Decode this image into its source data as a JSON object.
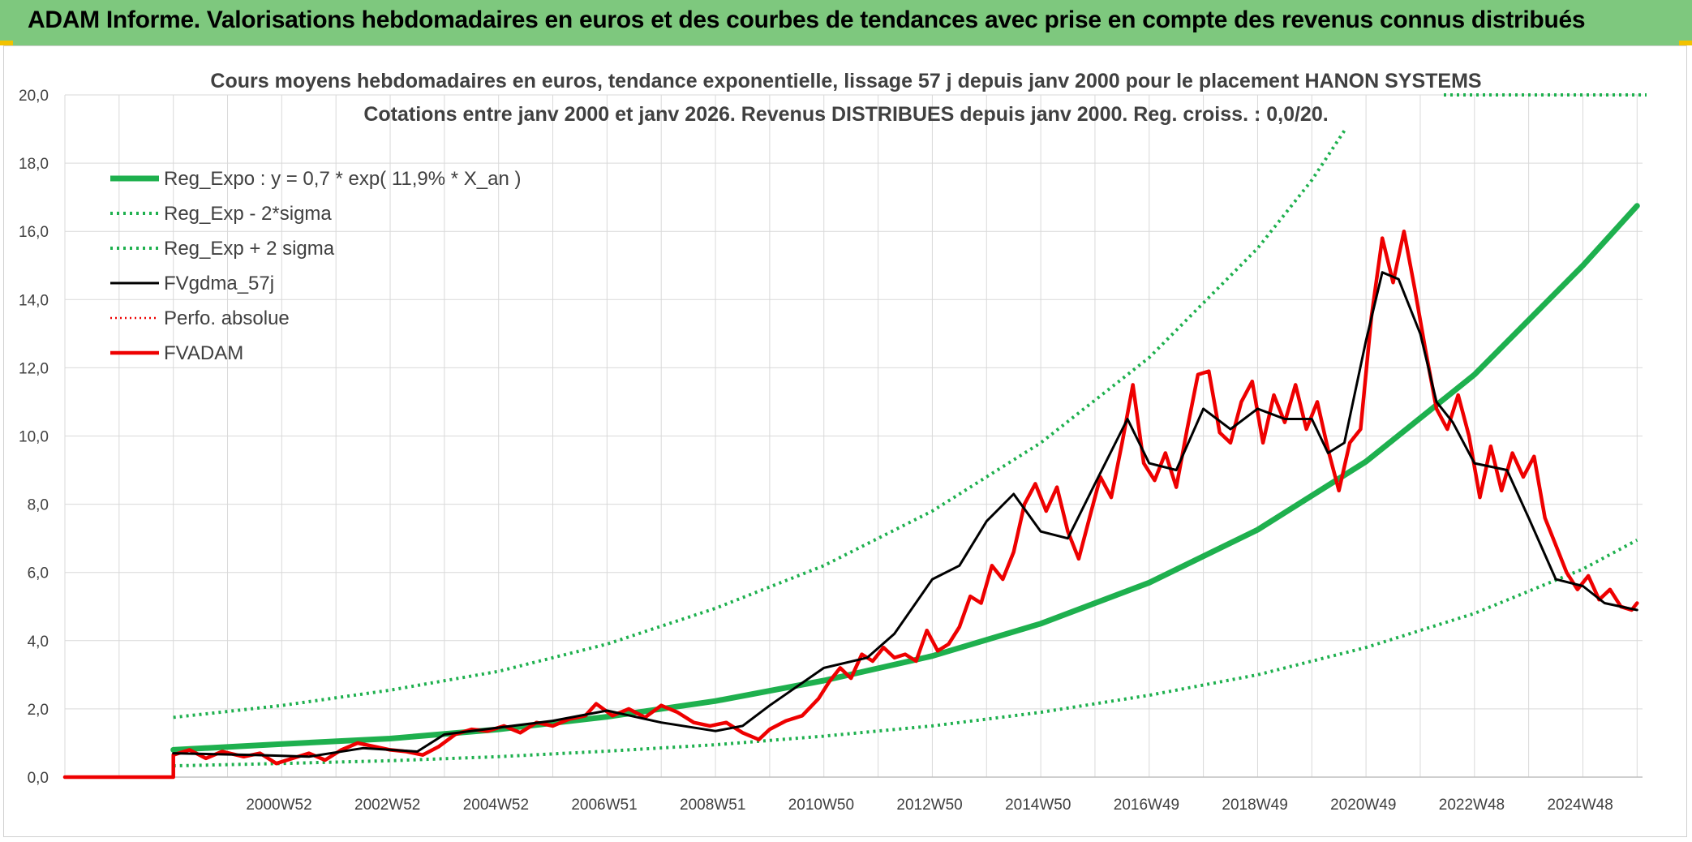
{
  "header": {
    "title": "ADAM Informe. Valorisations hebdomadaires en euros et des courbes de tendances avec prise en compte des revenus connus distribués"
  },
  "colors": {
    "header_bg": "#7ec87e",
    "green": "#1eb04e",
    "red": "#ee0000",
    "black": "#000000",
    "grid": "#d9d9d9",
    "axis_text": "#404040"
  },
  "chart_data": {
    "type": "line",
    "title": "Cours moyens hebdomadaires en euros, tendance exponentielle, lissage 57 j depuis janv 2000 pour le placement HANON SYSTEMS",
    "subtitle": "Cotations entre janv 2000 et janv 2026. Revenus DISTRIBUES depuis janv 2000. Reg. croiss. : 0,0/20.",
    "xlabel": "",
    "ylabel": "",
    "x_range": [
      1997,
      2026.1
    ],
    "ylim": [
      0,
      20
    ],
    "y_ticks": [
      "0,0",
      "2,0",
      "4,0",
      "6,0",
      "8,0",
      "10,0",
      "12,0",
      "14,0",
      "16,0",
      "18,0",
      "20,0"
    ],
    "x_ticks": [
      {
        "label": "2000W52",
        "x": 2000.0
      },
      {
        "label": "2002W52",
        "x": 2002.0
      },
      {
        "label": "2004W52",
        "x": 2004.0
      },
      {
        "label": "2006W51",
        "x": 2006.0
      },
      {
        "label": "2008W51",
        "x": 2008.0
      },
      {
        "label": "2010W50",
        "x": 2010.0
      },
      {
        "label": "2012W50",
        "x": 2012.0
      },
      {
        "label": "2014W50",
        "x": 2014.0
      },
      {
        "label": "2016W49",
        "x": 2016.0
      },
      {
        "label": "2018W49",
        "x": 2018.0
      },
      {
        "label": "2020W49",
        "x": 2020.0
      },
      {
        "label": "2022W48",
        "x": 2022.0
      },
      {
        "label": "2024W48",
        "x": 2024.0
      }
    ],
    "grid": true,
    "legend_position": "top-left",
    "series": [
      {
        "name": "Reg_Expo : y = 0,7 * exp( 11,9% *  X_an )",
        "style": "green-solid",
        "points": [
          [
            1999.0,
            0.8
          ],
          [
            2001,
            0.97
          ],
          [
            2003,
            1.13
          ],
          [
            2005,
            1.4
          ],
          [
            2007,
            1.77
          ],
          [
            2009,
            2.23
          ],
          [
            2011,
            2.83
          ],
          [
            2013,
            3.55
          ],
          [
            2015,
            4.5
          ],
          [
            2017,
            5.7
          ],
          [
            2019,
            7.25
          ],
          [
            2021,
            9.25
          ],
          [
            2023,
            11.8
          ],
          [
            2025,
            15.0
          ],
          [
            2026.0,
            16.75
          ]
        ]
      },
      {
        "name": "Reg_Exp - 2*sigma",
        "style": "green-dotted",
        "points": [
          [
            1999.0,
            0.33
          ],
          [
            2001,
            0.4
          ],
          [
            2003,
            0.48
          ],
          [
            2005,
            0.6
          ],
          [
            2007,
            0.76
          ],
          [
            2009,
            0.95
          ],
          [
            2011,
            1.2
          ],
          [
            2013,
            1.5
          ],
          [
            2015,
            1.9
          ],
          [
            2017,
            2.4
          ],
          [
            2019,
            3.0
          ],
          [
            2021,
            3.8
          ],
          [
            2023,
            4.8
          ],
          [
            2025,
            6.1
          ],
          [
            2026.0,
            6.95
          ]
        ]
      },
      {
        "name": "Reg_Exp + 2 sigma",
        "style": "green-dotted",
        "points": [
          [
            1999.0,
            1.75
          ],
          [
            2001,
            2.1
          ],
          [
            2003,
            2.55
          ],
          [
            2005,
            3.1
          ],
          [
            2007,
            3.9
          ],
          [
            2009,
            4.95
          ],
          [
            2011,
            6.2
          ],
          [
            2013,
            7.8
          ],
          [
            2015,
            9.8
          ],
          [
            2017,
            12.3
          ],
          [
            2019,
            15.5
          ],
          [
            2020.0,
            17.5
          ],
          [
            2020.6,
            18.95
          ]
        ]
      },
      {
        "name": "FVgdma_57j",
        "style": "black-solid",
        "points": [
          [
            1999.0,
            0.7
          ],
          [
            2000.5,
            0.65
          ],
          [
            2001.5,
            0.6
          ],
          [
            2002.5,
            0.85
          ],
          [
            2003.5,
            0.75
          ],
          [
            2004.0,
            1.25
          ],
          [
            2005.0,
            1.45
          ],
          [
            2006.0,
            1.65
          ],
          [
            2007.0,
            1.95
          ],
          [
            2008.0,
            1.6
          ],
          [
            2009.0,
            1.35
          ],
          [
            2009.5,
            1.5
          ],
          [
            2010.0,
            2.1
          ],
          [
            2011.0,
            3.2
          ],
          [
            2011.8,
            3.5
          ],
          [
            2012.3,
            4.2
          ],
          [
            2013.0,
            5.8
          ],
          [
            2013.5,
            6.2
          ],
          [
            2014.0,
            7.5
          ],
          [
            2014.5,
            8.3
          ],
          [
            2015.0,
            7.2
          ],
          [
            2015.5,
            7.0
          ],
          [
            2016.0,
            8.6
          ],
          [
            2016.6,
            10.5
          ],
          [
            2017.0,
            9.2
          ],
          [
            2017.5,
            9.0
          ],
          [
            2018.0,
            10.8
          ],
          [
            2018.5,
            10.2
          ],
          [
            2019.0,
            10.8
          ],
          [
            2019.5,
            10.5
          ],
          [
            2020.0,
            10.5
          ],
          [
            2020.3,
            9.5
          ],
          [
            2020.6,
            9.8
          ],
          [
            2021.0,
            12.8
          ],
          [
            2021.3,
            14.8
          ],
          [
            2021.6,
            14.6
          ],
          [
            2022.0,
            13.0
          ],
          [
            2022.3,
            11.0
          ],
          [
            2022.6,
            10.4
          ],
          [
            2023.0,
            9.2
          ],
          [
            2023.6,
            9.0
          ],
          [
            2024.0,
            7.6
          ],
          [
            2024.5,
            5.8
          ],
          [
            2025.0,
            5.6
          ],
          [
            2025.4,
            5.1
          ],
          [
            2026.0,
            4.9
          ]
        ]
      },
      {
        "name": "Perfo. absolue",
        "style": "red-dotted",
        "points": []
      },
      {
        "name": "FVADAM",
        "style": "red-solid",
        "points": [
          [
            1997.0,
            0.0
          ],
          [
            1999.0,
            0.0
          ],
          [
            1999.0,
            0.65
          ],
          [
            1999.3,
            0.8
          ],
          [
            1999.6,
            0.55
          ],
          [
            1999.9,
            0.75
          ],
          [
            2000.3,
            0.6
          ],
          [
            2000.6,
            0.7
          ],
          [
            2000.9,
            0.4
          ],
          [
            2001.2,
            0.55
          ],
          [
            2001.5,
            0.7
          ],
          [
            2001.8,
            0.5
          ],
          [
            2002.1,
            0.8
          ],
          [
            2002.4,
            1.0
          ],
          [
            2002.7,
            0.9
          ],
          [
            2003.0,
            0.8
          ],
          [
            2003.3,
            0.75
          ],
          [
            2003.6,
            0.65
          ],
          [
            2003.9,
            0.9
          ],
          [
            2004.2,
            1.25
          ],
          [
            2004.5,
            1.4
          ],
          [
            2004.8,
            1.35
          ],
          [
            2005.1,
            1.5
          ],
          [
            2005.4,
            1.3
          ],
          [
            2005.7,
            1.6
          ],
          [
            2006.0,
            1.5
          ],
          [
            2006.3,
            1.7
          ],
          [
            2006.6,
            1.8
          ],
          [
            2006.8,
            2.15
          ],
          [
            2007.1,
            1.8
          ],
          [
            2007.4,
            2.0
          ],
          [
            2007.7,
            1.75
          ],
          [
            2008.0,
            2.1
          ],
          [
            2008.3,
            1.9
          ],
          [
            2008.6,
            1.6
          ],
          [
            2008.9,
            1.5
          ],
          [
            2009.2,
            1.6
          ],
          [
            2009.5,
            1.3
          ],
          [
            2009.8,
            1.1
          ],
          [
            2010.0,
            1.4
          ],
          [
            2010.3,
            1.65
          ],
          [
            2010.6,
            1.8
          ],
          [
            2010.9,
            2.3
          ],
          [
            2011.1,
            2.8
          ],
          [
            2011.3,
            3.2
          ],
          [
            2011.5,
            2.9
          ],
          [
            2011.7,
            3.6
          ],
          [
            2011.9,
            3.4
          ],
          [
            2012.1,
            3.8
          ],
          [
            2012.3,
            3.5
          ],
          [
            2012.5,
            3.6
          ],
          [
            2012.7,
            3.4
          ],
          [
            2012.9,
            4.3
          ],
          [
            2013.1,
            3.7
          ],
          [
            2013.3,
            3.9
          ],
          [
            2013.5,
            4.4
          ],
          [
            2013.7,
            5.3
          ],
          [
            2013.9,
            5.1
          ],
          [
            2014.1,
            6.2
          ],
          [
            2014.3,
            5.8
          ],
          [
            2014.5,
            6.6
          ],
          [
            2014.7,
            8.0
          ],
          [
            2014.9,
            8.6
          ],
          [
            2015.1,
            7.8
          ],
          [
            2015.3,
            8.5
          ],
          [
            2015.5,
            7.2
          ],
          [
            2015.7,
            6.4
          ],
          [
            2015.9,
            7.6
          ],
          [
            2016.1,
            8.8
          ],
          [
            2016.3,
            8.2
          ],
          [
            2016.5,
            9.8
          ],
          [
            2016.7,
            11.5
          ],
          [
            2016.9,
            9.2
          ],
          [
            2017.1,
            8.7
          ],
          [
            2017.3,
            9.5
          ],
          [
            2017.5,
            8.5
          ],
          [
            2017.7,
            10.2
          ],
          [
            2017.9,
            11.8
          ],
          [
            2018.1,
            11.9
          ],
          [
            2018.3,
            10.1
          ],
          [
            2018.5,
            9.8
          ],
          [
            2018.7,
            11.0
          ],
          [
            2018.9,
            11.6
          ],
          [
            2019.1,
            9.8
          ],
          [
            2019.3,
            11.2
          ],
          [
            2019.5,
            10.4
          ],
          [
            2019.7,
            11.5
          ],
          [
            2019.9,
            10.2
          ],
          [
            2020.1,
            11.0
          ],
          [
            2020.3,
            9.6
          ],
          [
            2020.5,
            8.4
          ],
          [
            2020.7,
            9.8
          ],
          [
            2020.9,
            10.2
          ],
          [
            2021.1,
            13.5
          ],
          [
            2021.3,
            15.8
          ],
          [
            2021.5,
            14.5
          ],
          [
            2021.7,
            16.0
          ],
          [
            2021.9,
            14.3
          ],
          [
            2022.1,
            12.5
          ],
          [
            2022.3,
            10.8
          ],
          [
            2022.5,
            10.2
          ],
          [
            2022.7,
            11.2
          ],
          [
            2022.9,
            10.0
          ],
          [
            2023.1,
            8.2
          ],
          [
            2023.3,
            9.7
          ],
          [
            2023.5,
            8.4
          ],
          [
            2023.7,
            9.5
          ],
          [
            2023.9,
            8.8
          ],
          [
            2024.1,
            9.4
          ],
          [
            2024.3,
            7.6
          ],
          [
            2024.5,
            6.8
          ],
          [
            2024.7,
            6.0
          ],
          [
            2024.9,
            5.5
          ],
          [
            2025.1,
            5.9
          ],
          [
            2025.3,
            5.2
          ],
          [
            2025.5,
            5.5
          ],
          [
            2025.7,
            5.0
          ],
          [
            2025.9,
            4.9
          ],
          [
            2026.0,
            5.1
          ]
        ]
      }
    ]
  }
}
